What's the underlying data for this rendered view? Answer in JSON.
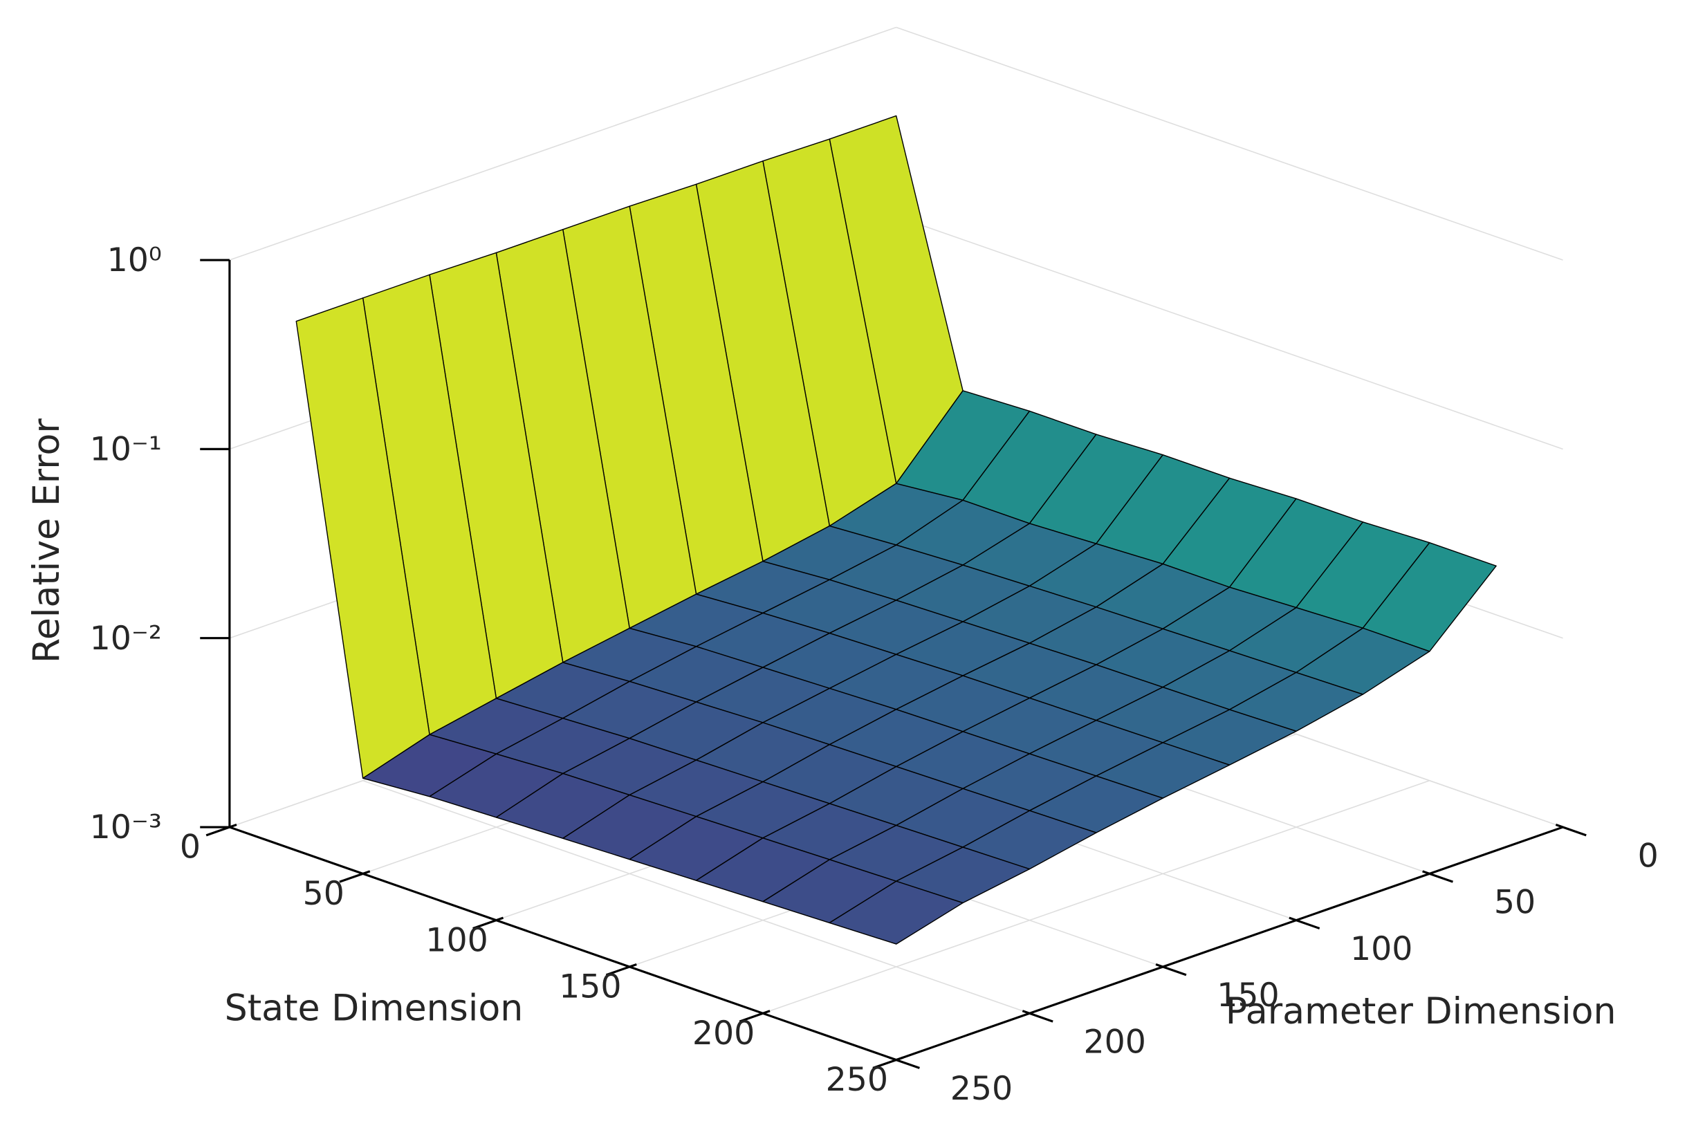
{
  "chart_data": {
    "type": "surface3d",
    "xlabel": "State Dimension",
    "ylabel": "Parameter Dimension",
    "zlabel": "Relative Error",
    "x": [
      25,
      50,
      75,
      100,
      125,
      150,
      175,
      200,
      225,
      250
    ],
    "y": [
      25,
      50,
      75,
      100,
      125,
      150,
      175,
      200,
      225,
      250
    ],
    "z": [
      [
        0.6,
        0.6,
        0.61,
        0.61,
        0.62,
        0.62,
        0.62,
        0.63,
        0.63,
        0.63
      ],
      [
        0.028,
        0.012,
        0.0095,
        0.0082,
        0.0073,
        0.0064,
        0.0056,
        0.0048,
        0.0041,
        0.0032
      ],
      [
        0.029,
        0.013,
        0.01,
        0.0087,
        0.0077,
        0.0068,
        0.0059,
        0.005,
        0.0043,
        0.0034
      ],
      [
        0.029,
        0.013,
        0.0104,
        0.009,
        0.008,
        0.007,
        0.0061,
        0.0052,
        0.0045,
        0.0035
      ],
      [
        0.03,
        0.0135,
        0.0107,
        0.0092,
        0.0082,
        0.0072,
        0.0063,
        0.0053,
        0.0046,
        0.0036
      ],
      [
        0.03,
        0.014,
        0.011,
        0.0094,
        0.0084,
        0.0074,
        0.0064,
        0.0054,
        0.0047,
        0.0037
      ],
      [
        0.031,
        0.014,
        0.0112,
        0.0096,
        0.0085,
        0.0075,
        0.0065,
        0.0055,
        0.0048,
        0.0038
      ],
      [
        0.031,
        0.0145,
        0.0114,
        0.0097,
        0.0086,
        0.0076,
        0.0066,
        0.0056,
        0.0049,
        0.0039
      ],
      [
        0.032,
        0.015,
        0.0116,
        0.0098,
        0.0087,
        0.0077,
        0.0067,
        0.0057,
        0.005,
        0.004
      ],
      [
        0.032,
        0.015,
        0.0118,
        0.01,
        0.0088,
        0.0078,
        0.0068,
        0.0058,
        0.0051,
        0.0041
      ]
    ],
    "xlim": [
      0,
      250
    ],
    "ylim": [
      0,
      250
    ],
    "zlim": [
      0.001,
      1
    ],
    "zscale": "log",
    "xticks": [
      0,
      50,
      100,
      150,
      200,
      250
    ],
    "yticks": [
      0,
      50,
      100,
      150,
      200,
      250
    ],
    "zticks": [
      {
        "value": 0.001,
        "label": "10⁻³"
      },
      {
        "value": 0.01,
        "label": "10⁻²"
      },
      {
        "value": 0.1,
        "label": "10⁻¹"
      },
      {
        "value": 1,
        "label": "10⁰"
      }
    ],
    "colormap": "viridis",
    "edgecolor": "#000000",
    "grid": true
  }
}
